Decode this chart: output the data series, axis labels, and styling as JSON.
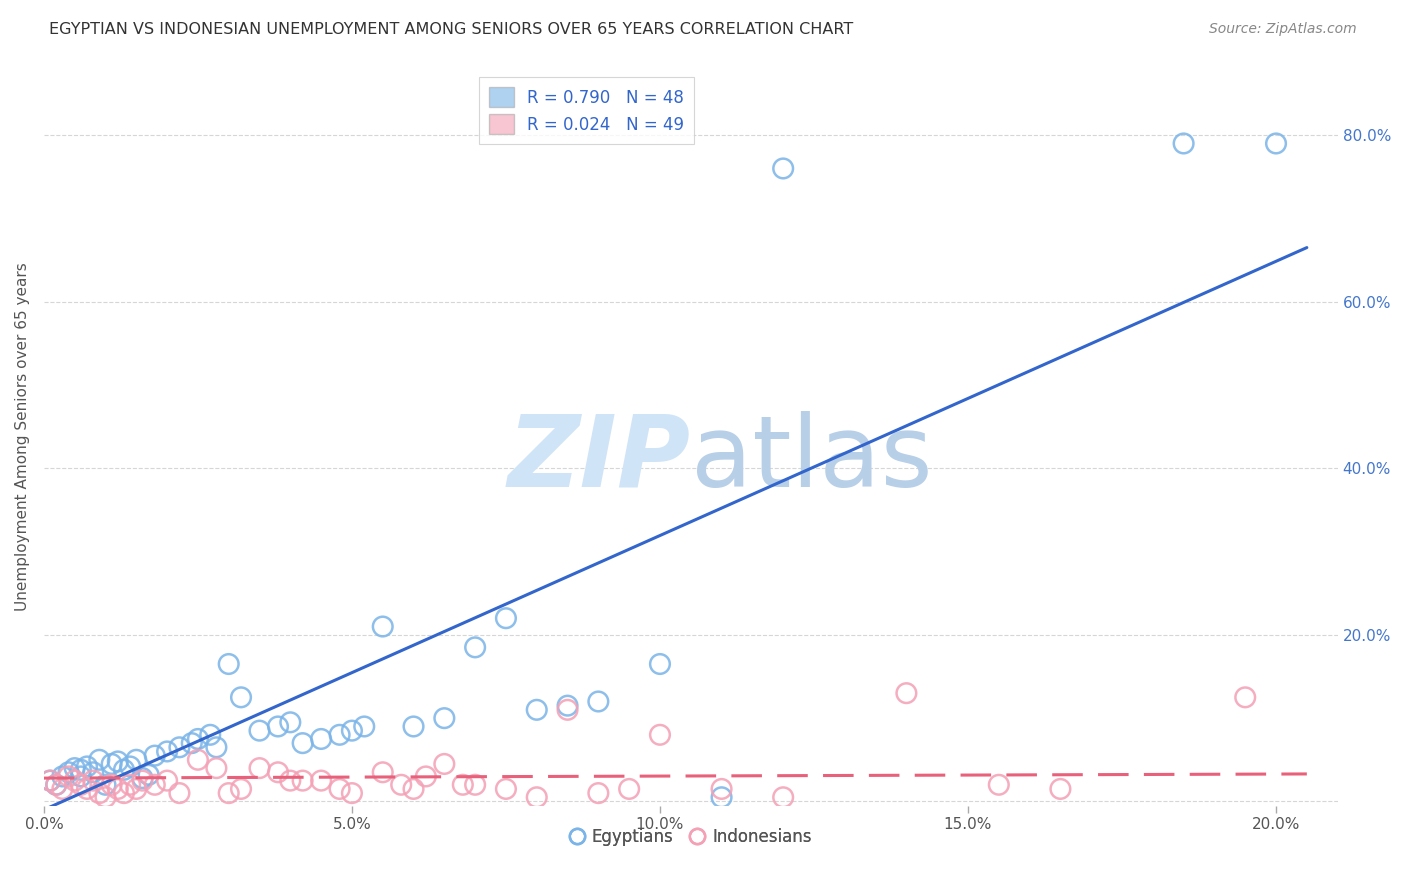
{
  "title": "EGYPTIAN VS INDONESIAN UNEMPLOYMENT AMONG SENIORS OVER 65 YEARS CORRELATION CHART",
  "source": "Source: ZipAtlas.com",
  "ylabel": "Unemployment Among Seniors over 65 years",
  "xlim": [
    0.0,
    0.21
  ],
  "ylim": [
    -0.005,
    0.88
  ],
  "yticks_left": [],
  "yticks_right": [
    0.0,
    0.2,
    0.4,
    0.6,
    0.8
  ],
  "ytick_labels_right": [
    "",
    "20.0%",
    "40.0%",
    "60.0%",
    "80.0%"
  ],
  "xticks": [
    0.0,
    0.05,
    0.1,
    0.15,
    0.2
  ],
  "xtick_labels": [
    "0.0%",
    "5.0%",
    "10.0%",
    "15.0%",
    "20.0%"
  ],
  "r_egyptian": 0.79,
  "n_egyptian": 48,
  "r_indonesian": 0.024,
  "n_indonesian": 49,
  "egyptian_color": "#7ab4e8",
  "indonesian_color": "#f4a0b5",
  "trendline_egyptian_color": "#3366cc",
  "trendline_indonesian_color": "#e8607a",
  "background_color": "#ffffff",
  "eg_trendline_x": [
    0.0,
    0.205
  ],
  "eg_trendline_y": [
    -0.01,
    0.665
  ],
  "ind_trendline_x": [
    0.0,
    0.205
  ],
  "ind_trendline_y": [
    0.028,
    0.033
  ],
  "egyptian_x": [
    0.001,
    0.002,
    0.003,
    0.004,
    0.005,
    0.006,
    0.006,
    0.007,
    0.008,
    0.009,
    0.01,
    0.011,
    0.012,
    0.013,
    0.014,
    0.015,
    0.016,
    0.017,
    0.018,
    0.02,
    0.022,
    0.024,
    0.025,
    0.027,
    0.028,
    0.03,
    0.032,
    0.035,
    0.038,
    0.04,
    0.042,
    0.045,
    0.048,
    0.05,
    0.052,
    0.055,
    0.06,
    0.065,
    0.07,
    0.075,
    0.08,
    0.085,
    0.09,
    0.1,
    0.11,
    0.12,
    0.185,
    0.2
  ],
  "egyptian_y": [
    0.025,
    0.02,
    0.03,
    0.035,
    0.04,
    0.03,
    0.038,
    0.042,
    0.035,
    0.05,
    0.02,
    0.045,
    0.048,
    0.038,
    0.042,
    0.05,
    0.028,
    0.032,
    0.055,
    0.06,
    0.065,
    0.07,
    0.075,
    0.08,
    0.065,
    0.165,
    0.125,
    0.085,
    0.09,
    0.095,
    0.07,
    0.075,
    0.08,
    0.085,
    0.09,
    0.21,
    0.09,
    0.1,
    0.185,
    0.22,
    0.11,
    0.115,
    0.12,
    0.165,
    0.005,
    0.76,
    0.79,
    0.79
  ],
  "indonesian_x": [
    0.001,
    0.002,
    0.003,
    0.004,
    0.005,
    0.006,
    0.007,
    0.008,
    0.009,
    0.01,
    0.011,
    0.012,
    0.013,
    0.014,
    0.015,
    0.016,
    0.018,
    0.02,
    0.022,
    0.025,
    0.028,
    0.03,
    0.032,
    0.035,
    0.038,
    0.04,
    0.042,
    0.045,
    0.048,
    0.05,
    0.055,
    0.058,
    0.06,
    0.062,
    0.065,
    0.068,
    0.07,
    0.075,
    0.08,
    0.085,
    0.09,
    0.095,
    0.1,
    0.11,
    0.12,
    0.14,
    0.155,
    0.165,
    0.195
  ],
  "indonesian_y": [
    0.025,
    0.02,
    0.015,
    0.03,
    0.025,
    0.02,
    0.015,
    0.025,
    0.01,
    0.005,
    0.02,
    0.015,
    0.01,
    0.02,
    0.015,
    0.025,
    0.02,
    0.025,
    0.01,
    0.05,
    0.04,
    0.01,
    0.015,
    0.04,
    0.035,
    0.025,
    0.025,
    0.025,
    0.015,
    0.01,
    0.035,
    0.02,
    0.015,
    0.03,
    0.045,
    0.02,
    0.02,
    0.015,
    0.005,
    0.11,
    0.01,
    0.015,
    0.08,
    0.015,
    0.005,
    0.13,
    0.02,
    0.015,
    0.125
  ]
}
